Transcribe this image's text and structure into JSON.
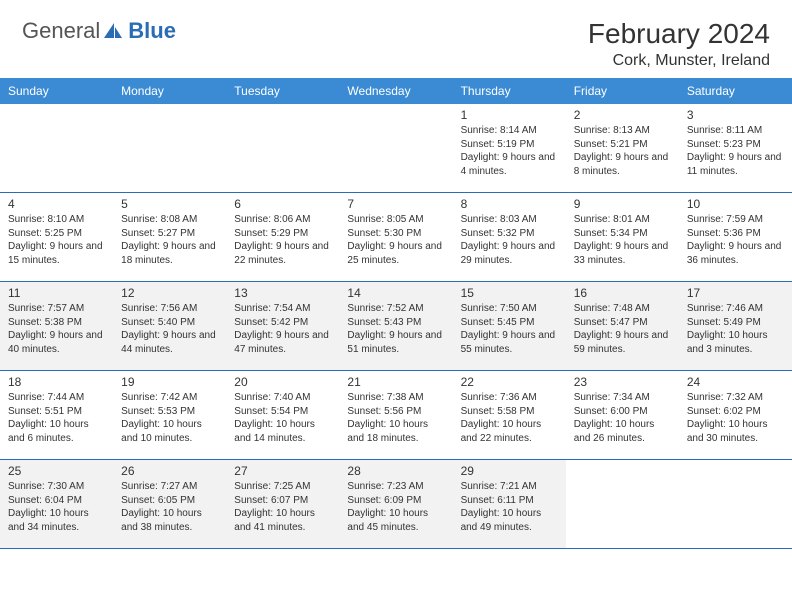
{
  "logo": {
    "general": "General",
    "blue": "Blue"
  },
  "title": "February 2024",
  "location": "Cork, Munster, Ireland",
  "colors": {
    "header_bg": "#3b8bd4",
    "header_text": "#ffffff",
    "border": "#2a6db5",
    "shaded": "#f2f2f2",
    "text": "#333333",
    "logo_gray": "#555555",
    "logo_blue": "#2a6db5"
  },
  "dayNames": [
    "Sunday",
    "Monday",
    "Tuesday",
    "Wednesday",
    "Thursday",
    "Friday",
    "Saturday"
  ],
  "weeks": [
    [
      null,
      null,
      null,
      null,
      {
        "n": "1",
        "sr": "8:14 AM",
        "ss": "5:19 PM",
        "dl": "9 hours and 4 minutes."
      },
      {
        "n": "2",
        "sr": "8:13 AM",
        "ss": "5:21 PM",
        "dl": "9 hours and 8 minutes."
      },
      {
        "n": "3",
        "sr": "8:11 AM",
        "ss": "5:23 PM",
        "dl": "9 hours and 11 minutes."
      }
    ],
    [
      {
        "n": "4",
        "sr": "8:10 AM",
        "ss": "5:25 PM",
        "dl": "9 hours and 15 minutes."
      },
      {
        "n": "5",
        "sr": "8:08 AM",
        "ss": "5:27 PM",
        "dl": "9 hours and 18 minutes."
      },
      {
        "n": "6",
        "sr": "8:06 AM",
        "ss": "5:29 PM",
        "dl": "9 hours and 22 minutes."
      },
      {
        "n": "7",
        "sr": "8:05 AM",
        "ss": "5:30 PM",
        "dl": "9 hours and 25 minutes."
      },
      {
        "n": "8",
        "sr": "8:03 AM",
        "ss": "5:32 PM",
        "dl": "9 hours and 29 minutes."
      },
      {
        "n": "9",
        "sr": "8:01 AM",
        "ss": "5:34 PM",
        "dl": "9 hours and 33 minutes."
      },
      {
        "n": "10",
        "sr": "7:59 AM",
        "ss": "5:36 PM",
        "dl": "9 hours and 36 minutes."
      }
    ],
    [
      {
        "n": "11",
        "sr": "7:57 AM",
        "ss": "5:38 PM",
        "dl": "9 hours and 40 minutes."
      },
      {
        "n": "12",
        "sr": "7:56 AM",
        "ss": "5:40 PM",
        "dl": "9 hours and 44 minutes."
      },
      {
        "n": "13",
        "sr": "7:54 AM",
        "ss": "5:42 PM",
        "dl": "9 hours and 47 minutes."
      },
      {
        "n": "14",
        "sr": "7:52 AM",
        "ss": "5:43 PM",
        "dl": "9 hours and 51 minutes."
      },
      {
        "n": "15",
        "sr": "7:50 AM",
        "ss": "5:45 PM",
        "dl": "9 hours and 55 minutes."
      },
      {
        "n": "16",
        "sr": "7:48 AM",
        "ss": "5:47 PM",
        "dl": "9 hours and 59 minutes."
      },
      {
        "n": "17",
        "sr": "7:46 AM",
        "ss": "5:49 PM",
        "dl": "10 hours and 3 minutes."
      }
    ],
    [
      {
        "n": "18",
        "sr": "7:44 AM",
        "ss": "5:51 PM",
        "dl": "10 hours and 6 minutes."
      },
      {
        "n": "19",
        "sr": "7:42 AM",
        "ss": "5:53 PM",
        "dl": "10 hours and 10 minutes."
      },
      {
        "n": "20",
        "sr": "7:40 AM",
        "ss": "5:54 PM",
        "dl": "10 hours and 14 minutes."
      },
      {
        "n": "21",
        "sr": "7:38 AM",
        "ss": "5:56 PM",
        "dl": "10 hours and 18 minutes."
      },
      {
        "n": "22",
        "sr": "7:36 AM",
        "ss": "5:58 PM",
        "dl": "10 hours and 22 minutes."
      },
      {
        "n": "23",
        "sr": "7:34 AM",
        "ss": "6:00 PM",
        "dl": "10 hours and 26 minutes."
      },
      {
        "n": "24",
        "sr": "7:32 AM",
        "ss": "6:02 PM",
        "dl": "10 hours and 30 minutes."
      }
    ],
    [
      {
        "n": "25",
        "sr": "7:30 AM",
        "ss": "6:04 PM",
        "dl": "10 hours and 34 minutes."
      },
      {
        "n": "26",
        "sr": "7:27 AM",
        "ss": "6:05 PM",
        "dl": "10 hours and 38 minutes."
      },
      {
        "n": "27",
        "sr": "7:25 AM",
        "ss": "6:07 PM",
        "dl": "10 hours and 41 minutes."
      },
      {
        "n": "28",
        "sr": "7:23 AM",
        "ss": "6:09 PM",
        "dl": "10 hours and 45 minutes."
      },
      {
        "n": "29",
        "sr": "7:21 AM",
        "ss": "6:11 PM",
        "dl": "10 hours and 49 minutes."
      },
      null,
      null
    ]
  ],
  "labels": {
    "sunrise": "Sunrise: ",
    "sunset": "Sunset: ",
    "daylight": "Daylight: "
  },
  "shadedWeeks": [
    2,
    4
  ]
}
